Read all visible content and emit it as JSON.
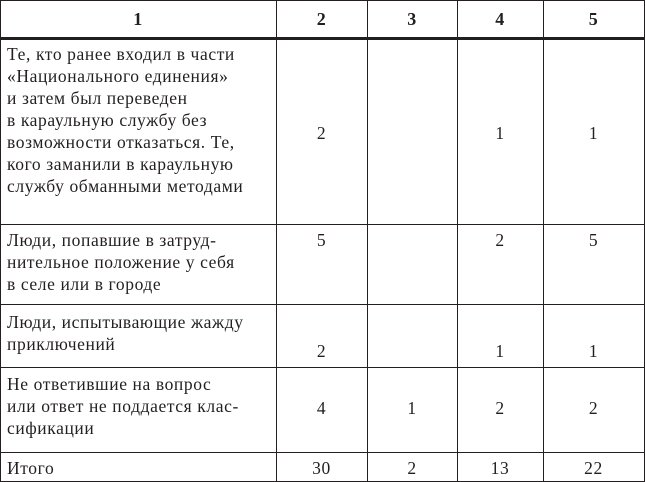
{
  "header": [
    "1",
    "2",
    "3",
    "4",
    "5"
  ],
  "rows": [
    {
      "label": "Те, кто ранее входил в части\n«Национального единения»\nи затем был переведен\nв караульную службу без\nвозможности отказаться. Те,\nкого заманили в караульную\nслужбу обманными методами",
      "values": [
        "2",
        "",
        "1",
        "1"
      ]
    },
    {
      "label": "Люди, попавшие в затруд-\nнительное положение у себя\nв селе или в городе",
      "values": [
        "5",
        "",
        "2",
        "5"
      ]
    },
    {
      "label": "Люди, испытывающие жажду\nприключений",
      "values": [
        "2",
        "",
        "1",
        "1"
      ]
    },
    {
      "label": "Не ответившие на вопрос\nили ответ не поддается клас-\nсификации",
      "values": [
        "4",
        "1",
        "2",
        "2"
      ]
    },
    {
      "label": "Итого",
      "values": [
        "30",
        "2",
        "13",
        "22"
      ]
    }
  ]
}
